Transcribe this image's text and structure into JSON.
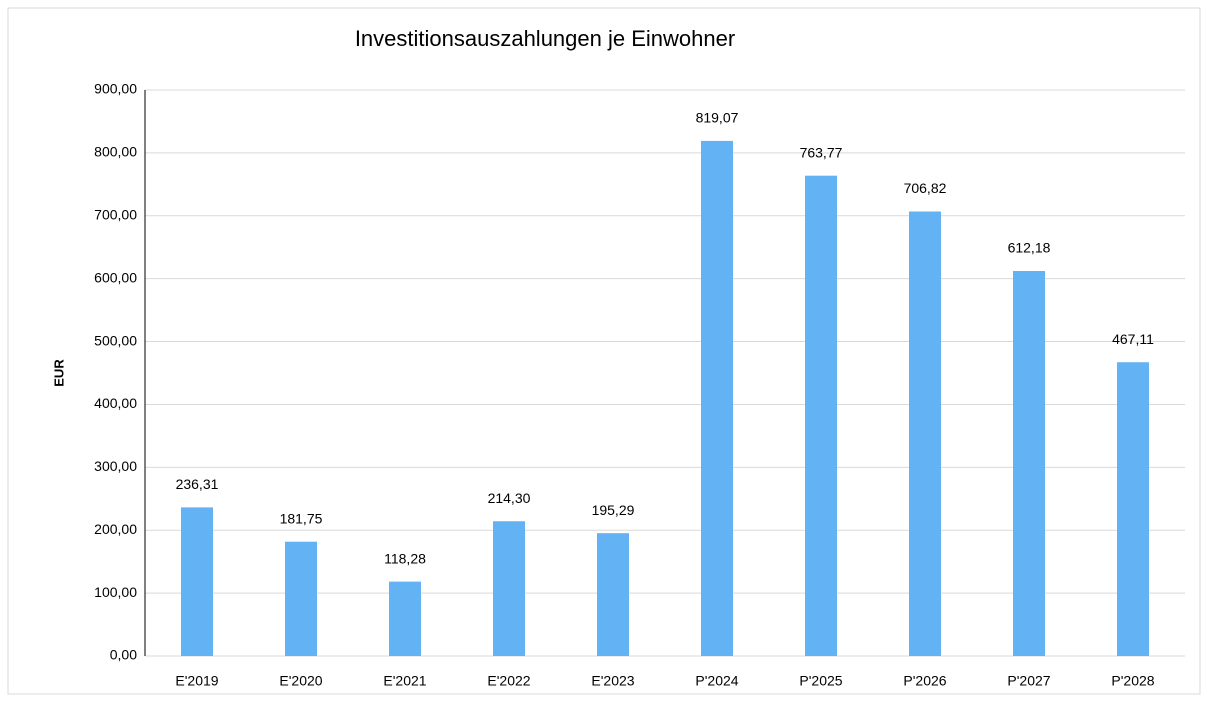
{
  "chart_data": {
    "type": "bar",
    "title": "Investitionsauszahlungen je Einwohner",
    "y_label": "EUR",
    "categories": [
      "E'2019",
      "E'2020",
      "E'2021",
      "E'2022",
      "E'2023",
      "P'2024",
      "P'2025",
      "P'2026",
      "P'2027",
      "P'2028"
    ],
    "values": [
      236.31,
      181.75,
      118.28,
      214.3,
      195.29,
      819.07,
      763.77,
      706.82,
      612.18,
      467.11
    ],
    "value_labels": [
      "236,31",
      "181,75",
      "118,28",
      "214,30",
      "195,29",
      "819,07",
      "763,77",
      "706,82",
      "612,18",
      "467,11"
    ],
    "color": "#63b3f4",
    "ylim": [
      0,
      900
    ],
    "yticks": [
      {
        "value": 0,
        "label": "0,00"
      },
      {
        "value": 100,
        "label": "100,00"
      },
      {
        "value": 200,
        "label": "200,00"
      },
      {
        "value": 300,
        "label": "300,00"
      },
      {
        "value": 400,
        "label": "400,00"
      },
      {
        "value": 500,
        "label": "500,00"
      },
      {
        "value": 600,
        "label": "600,00"
      },
      {
        "value": 700,
        "label": "700,00"
      },
      {
        "value": 800,
        "label": "800,00"
      },
      {
        "value": 900,
        "label": "900,00"
      }
    ],
    "grid": true
  }
}
